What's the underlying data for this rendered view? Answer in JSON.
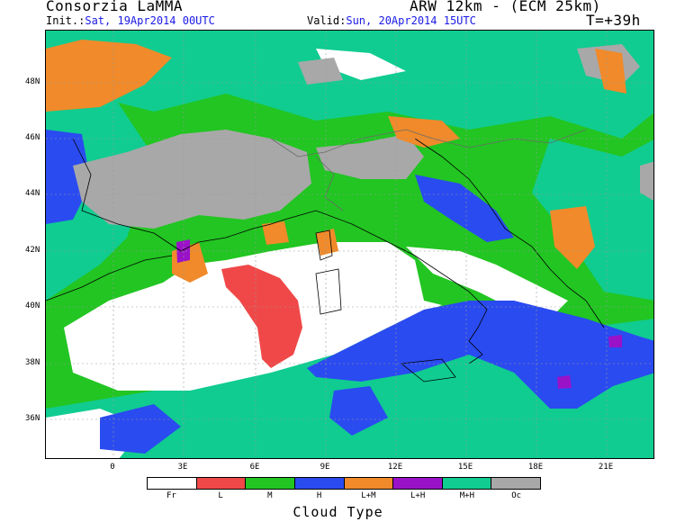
{
  "header": {
    "title_left": "Consorzia LaMMA",
    "title_right": "ARW 12km - (ECM 25km)",
    "init_label": "Init.:",
    "init_value": "Sat, 19Apr2014 00UTC",
    "valid_label": "Valid:",
    "valid_value": "Sun, 20Apr2014 15UTC",
    "forecast_hour": "T=+39h"
  },
  "axes": {
    "lat_labels": [
      "48N",
      "46N",
      "44N",
      "42N",
      "40N",
      "38N",
      "36N"
    ],
    "lon_labels": [
      "0",
      "3E",
      "6E",
      "9E",
      "12E",
      "15E",
      "18E",
      "21E"
    ]
  },
  "legend": {
    "title": "Cloud Type",
    "items": [
      {
        "label": "Fr",
        "color": "#ffffff"
      },
      {
        "label": "L",
        "color": "#f04848"
      },
      {
        "label": "M",
        "color": "#22c522"
      },
      {
        "label": "H",
        "color": "#2a4bf0"
      },
      {
        "label": "L+M",
        "color": "#f08a2a"
      },
      {
        "label": "L+H",
        "color": "#9a12c8"
      },
      {
        "label": "M+H",
        "color": "#10cc90"
      },
      {
        "label": "Oc",
        "color": "#a8a8a8"
      }
    ]
  },
  "colors": {
    "clear": "#ffffff",
    "low": "#f04848",
    "mid": "#22c522",
    "high": "#2a4bf0",
    "low_mid": "#f08a2a",
    "low_high": "#9a12c8",
    "mid_high": "#10cc90",
    "overcast": "#a8a8a8"
  }
}
